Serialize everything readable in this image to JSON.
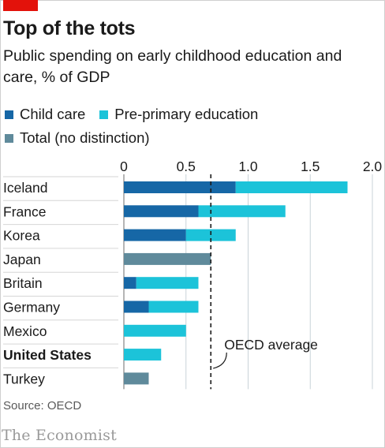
{
  "header": {
    "title": "Top of the tots",
    "subtitle": "Public spending on early childhood education and care, % of GDP"
  },
  "legend": {
    "items": [
      {
        "label": "Child care",
        "color": "#1667a6"
      },
      {
        "label": "Pre-primary education",
        "color": "#1cc3d9"
      },
      {
        "label": "Total (no distinction)",
        "color": "#5f8a9b"
      }
    ]
  },
  "chart_data": {
    "type": "bar",
    "orientation": "horizontal",
    "stacked": true,
    "categories": [
      "Iceland",
      "France",
      "Korea",
      "Japan",
      "Britain",
      "Germany",
      "Mexico",
      "United States",
      "Turkey"
    ],
    "highlighted_category": "United States",
    "series": [
      {
        "name": "Child care",
        "color": "#1667a6",
        "values": [
          0.9,
          0.6,
          0.5,
          0,
          0.1,
          0.2,
          0,
          0,
          0
        ]
      },
      {
        "name": "Pre-primary education",
        "color": "#1cc3d9",
        "values": [
          0.9,
          0.7,
          0.4,
          0,
          0.5,
          0.4,
          0.5,
          0.3,
          0
        ]
      },
      {
        "name": "Total (no distinction)",
        "color": "#5f8a9b",
        "values": [
          0,
          0,
          0,
          0.7,
          0,
          0,
          0,
          0,
          0.2
        ]
      }
    ],
    "xlim": [
      0,
      2.0
    ],
    "xticks": [
      0,
      0.5,
      1.0,
      1.5,
      2.0
    ],
    "xtick_labels": [
      "0",
      "0.5",
      "1.0",
      "1.5",
      "2.0"
    ],
    "x_axis_position": "top",
    "grid": true,
    "reference_line": {
      "label": "OECD average",
      "value": 0.7,
      "style": "dashed"
    },
    "legend_position": "top-left"
  },
  "footer": {
    "source": "Source: OECD",
    "brand": "The Economist"
  }
}
